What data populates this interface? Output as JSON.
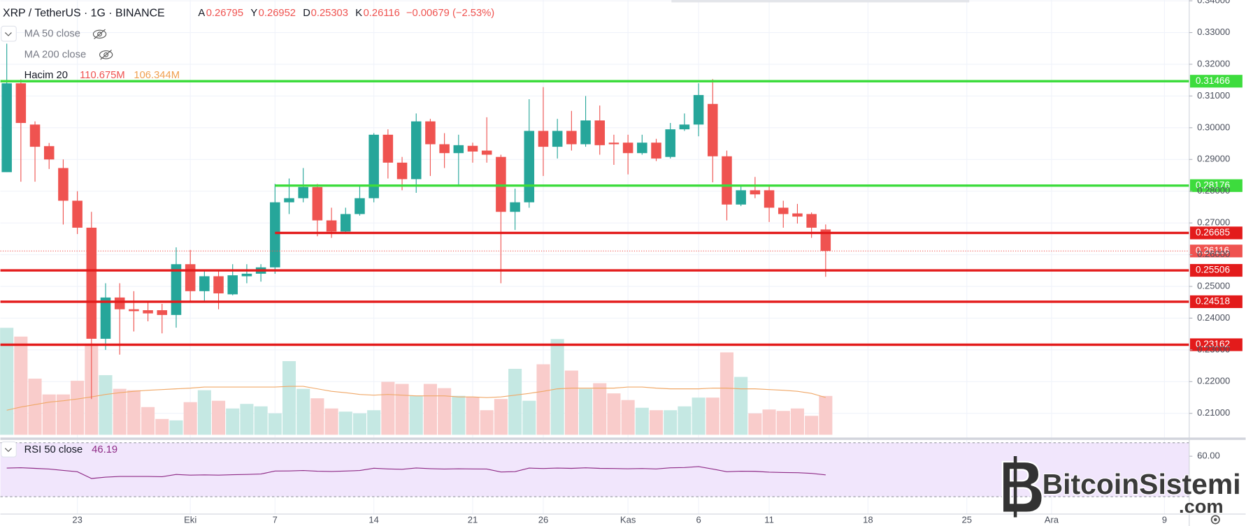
{
  "chart_data": {
    "type": "candlestick",
    "title": "XRP / TetherUS · 1G · BINANCE",
    "ohlc_labels": [
      "A",
      "Y",
      "D",
      "K"
    ],
    "change_label": "−0.00679 (−2.53%)",
    "xlim": [
      -0.45,
      83.75
    ],
    "xticks": [
      {
        "value": 5,
        "label": "23"
      },
      {
        "value": 13,
        "label": "Eki"
      },
      {
        "value": 19,
        "label": "7"
      },
      {
        "value": 26,
        "label": "14"
      },
      {
        "value": 33,
        "label": "21"
      },
      {
        "value": 38,
        "label": "26"
      },
      {
        "value": 44,
        "label": "Kas"
      },
      {
        "value": 49,
        "label": "6"
      },
      {
        "value": 54,
        "label": "11"
      },
      {
        "value": 61,
        "label": "18"
      },
      {
        "value": 68,
        "label": "25"
      },
      {
        "value": 74,
        "label": "Ara"
      },
      {
        "value": 82,
        "label": "9"
      }
    ],
    "open": [
      0.286,
      0.314,
      0.301,
      0.2942,
      0.2873,
      0.277,
      0.2685,
      0.2335,
      0.2465,
      0.2428,
      0.2425,
      0.2425,
      0.241,
      0.257,
      0.2485,
      0.2532,
      0.2475,
      0.2532,
      0.254,
      0.256,
      0.2765,
      0.2778,
      0.2813,
      0.2708,
      0.2673,
      0.2728,
      0.2778,
      0.2978,
      0.289,
      0.2838,
      0.302,
      0.2948,
      0.292,
      0.2943,
      0.2928,
      0.2908,
      0.2735,
      0.2765,
      0.299,
      0.294,
      0.299,
      0.2948,
      0.3023,
      0.2953,
      0.2953,
      0.292,
      0.2953,
      0.2908,
      0.2995,
      0.301,
      0.3075,
      0.291,
      0.2758,
      0.2803,
      0.2803,
      0.2748,
      0.273,
      0.2728,
      0.26795
    ],
    "high": [
      0.3265,
      0.3152,
      0.302,
      0.2952,
      0.29,
      0.28,
      0.2735,
      0.251,
      0.251,
      0.2485,
      0.2453,
      0.2445,
      0.2623,
      0.2615,
      0.2552,
      0.2552,
      0.257,
      0.257,
      0.257,
      0.2823,
      0.284,
      0.2873,
      0.2823,
      0.2748,
      0.2748,
      0.2815,
      0.2983,
      0.2995,
      0.2908,
      0.3045,
      0.3028,
      0.2983,
      0.2978,
      0.2953,
      0.3033,
      0.2915,
      0.2808,
      0.309,
      0.3128,
      0.3028,
      0.3053,
      0.31,
      0.307,
      0.2978,
      0.2978,
      0.2978,
      0.2965,
      0.3015,
      0.3045,
      0.314,
      0.3153,
      0.2928,
      0.2815,
      0.2845,
      0.2815,
      0.277,
      0.276,
      0.2733,
      0.26952
    ],
    "low": [
      0.286,
      0.283,
      0.283,
      0.287,
      0.2695,
      0.2665,
      0.2145,
      0.23,
      0.2285,
      0.2358,
      0.239,
      0.2352,
      0.237,
      0.2452,
      0.2452,
      0.2428,
      0.2472,
      0.251,
      0.2515,
      0.254,
      0.2728,
      0.2765,
      0.2658,
      0.2653,
      0.2665,
      0.2723,
      0.2765,
      0.284,
      0.2803,
      0.2795,
      0.2848,
      0.2873,
      0.2815,
      0.289,
      0.289,
      0.251,
      0.2678,
      0.2748,
      0.2848,
      0.2903,
      0.2928,
      0.294,
      0.2915,
      0.2883,
      0.2853,
      0.2915,
      0.2895,
      0.2903,
      0.299,
      0.2973,
      0.2828,
      0.2708,
      0.2753,
      0.2778,
      0.2703,
      0.2685,
      0.2698,
      0.2653,
      0.25303
    ],
    "close": [
      0.314,
      0.3015,
      0.294,
      0.29,
      0.277,
      0.2685,
      0.2335,
      0.2465,
      0.2428,
      0.2422,
      0.2415,
      0.241,
      0.257,
      0.2485,
      0.2532,
      0.2478,
      0.2535,
      0.254,
      0.256,
      0.2765,
      0.2778,
      0.2813,
      0.2708,
      0.2673,
      0.2728,
      0.2778,
      0.2978,
      0.289,
      0.2838,
      0.302,
      0.2948,
      0.292,
      0.2945,
      0.2925,
      0.2915,
      0.2735,
      0.2765,
      0.299,
      0.294,
      0.299,
      0.2948,
      0.3023,
      0.2945,
      0.2948,
      0.292,
      0.2953,
      0.2903,
      0.2995,
      0.301,
      0.3103,
      0.291,
      0.2758,
      0.2803,
      0.279,
      0.2748,
      0.2728,
      0.272,
      0.2685,
      0.26116
    ],
    "up_color": "#26a69a",
    "down_color": "#ef5350",
    "ylim": [
      0.20325,
      0.34025
    ],
    "yticks": [
      {
        "value": 0.21,
        "label": "0.21000"
      },
      {
        "value": 0.22,
        "label": "0.22000"
      },
      {
        "value": 0.23,
        "label": "0.23000"
      },
      {
        "value": 0.24,
        "label": "0.24000"
      },
      {
        "value": 0.25,
        "label": "0.25000"
      },
      {
        "value": 0.26,
        "label": "0.26000"
      },
      {
        "value": 0.27,
        "label": "0.27000"
      },
      {
        "value": 0.28,
        "label": "0.28000"
      },
      {
        "value": 0.29,
        "label": "0.29000"
      },
      {
        "value": 0.3,
        "label": "0.30000"
      },
      {
        "value": 0.31,
        "label": "0.31000"
      },
      {
        "value": 0.32,
        "label": "0.32000"
      },
      {
        "value": 0.33,
        "label": "0.33000"
      },
      {
        "value": 0.34,
        "label": "0.34000"
      }
    ],
    "grid": true,
    "hidden_indicators": [
      "MA 50 close",
      "MA 200 close"
    ],
    "volume": {
      "name": "Hacim 20",
      "ylim": [
        0,
        500
      ],
      "values": [
        305,
        280,
        160,
        115,
        115,
        154,
        260,
        170,
        131,
        127,
        79,
        45,
        41,
        93,
        127,
        97,
        75,
        88,
        81,
        61,
        210,
        131,
        104,
        75,
        66,
        61,
        70,
        151,
        145,
        111,
        145,
        133,
        111,
        108,
        70,
        102,
        188,
        97,
        201,
        273,
        183,
        131,
        147,
        118,
        99,
        77,
        70,
        70,
        81,
        106,
        106,
        235,
        165,
        61,
        72,
        68,
        75,
        54,
        110.675
      ],
      "last_label": "110.675M",
      "up_color": "#c5e8e3",
      "down_color": "#f9cccb",
      "ma_values": [
        70,
        79,
        86,
        93,
        97,
        102,
        108,
        115,
        120,
        124,
        127,
        129,
        131,
        133,
        136,
        136,
        136,
        136,
        136,
        136,
        138,
        138,
        131,
        124,
        120,
        115,
        113,
        115,
        113,
        111,
        111,
        111,
        108,
        108,
        106,
        108,
        113,
        118,
        124,
        131,
        133,
        133,
        133,
        133,
        136,
        136,
        133,
        131,
        131,
        131,
        133,
        133,
        131,
        131,
        129,
        127,
        124,
        118,
        106.344
      ],
      "ma_last_label": "106.344M",
      "ma_color": "#f0a868"
    },
    "levels": [
      {
        "value": 0.31466,
        "color": "#3ddc3d"
      },
      {
        "value": 0.28176,
        "color": "#3ddc3d",
        "from": 19
      },
      {
        "value": 0.26685,
        "color": "#e31b1b",
        "from": 19
      },
      {
        "value": 0.25506,
        "color": "#e31b1b"
      },
      {
        "value": 0.24518,
        "color": "#e31b1b"
      },
      {
        "value": 0.23162,
        "color": "#e31b1b"
      }
    ],
    "rsi": {
      "name": "RSI 50 close",
      "ylim": [
        17.1,
        71.8
      ],
      "yticks": [
        {
          "value": 60,
          "label": "60.00"
        }
      ],
      "bands": [
        30,
        70
      ],
      "color": "#8e2a86",
      "band_color": "#f1e6fc",
      "values": [
        51.2,
        51.5,
        51,
        50.5,
        49.5,
        48.5,
        43.5,
        44.5,
        45,
        45,
        45,
        44.8,
        46.5,
        46,
        46.2,
        46,
        46.3,
        46.5,
        46.8,
        49,
        49.1,
        49.4,
        48.9,
        48.7,
        49,
        49.4,
        51.1,
        50.6,
        50.3,
        51.3,
        50.8,
        50.5,
        50.7,
        50.6,
        50.5,
        48.3,
        48.6,
        51.2,
        50.9,
        51.2,
        51,
        51.4,
        51,
        50.9,
        50.7,
        50.9,
        50.6,
        51.4,
        51.6,
        52.3,
        50.5,
        48.5,
        48.9,
        48.8,
        48.2,
        47.9,
        47.8,
        47.3,
        46.19
      ]
    },
    "watermark": [
      "BitcoinSistemi",
      ".com"
    ]
  }
}
